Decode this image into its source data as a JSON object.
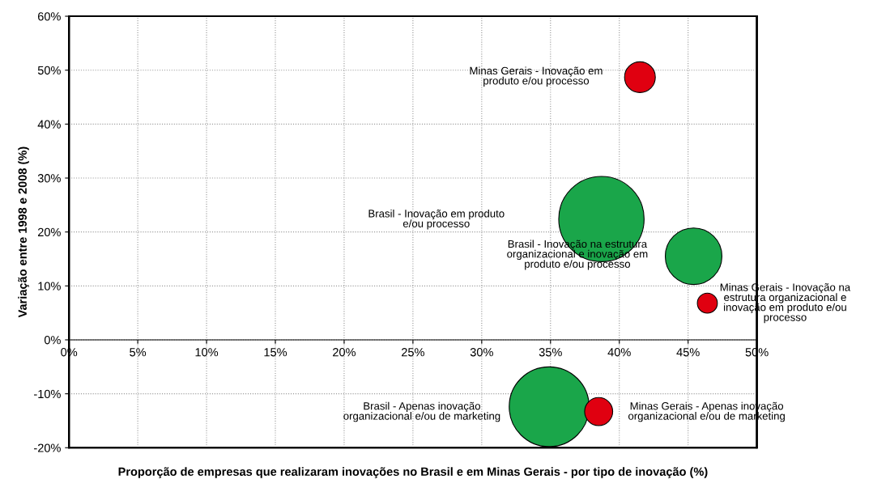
{
  "chart_data": {
    "type": "bubble",
    "xlabel": "Proporção de empresas que realizaram inovações no Brasil e em Minas Gerais - por tipo de inovação (%)",
    "ylabel": "Variação entre 1998 e 2008 (%)",
    "series": [
      {
        "color": "#1aa64a",
        "x": [
          38.7,
          45.4,
          34.9
        ],
        "values": [
          22.4,
          15.5,
          -12.4
        ],
        "sizes": [
          1,
          0.44,
          0.875
        ]
      },
      {
        "color": "#e00010",
        "x": [
          41.5,
          46.4,
          38.5
        ],
        "values": [
          48.7,
          6.8,
          -13.3
        ],
        "sizes": [
          0.13,
          0.055,
          0.108
        ]
      }
    ],
    "annotations": [
      "Minas Gerais - Inovação em\nproduto e/ou processo",
      "Brasil - Inovação em produto\ne/ou processo",
      "Brasil - Inovação na estrutura\norganizacional e inovação em\nproduto e/ou processo",
      "Minas Gerais - Inovação na\nestrutura organizacional e\ninovação em produto e/ou\nprocesso",
      "Brasil - Apenas inovação\norganizacional e/ou de marketing",
      "Minas Gerais - Apenas inovação\norganizacional e/ou de marketing"
    ],
    "xlim": [
      0,
      50
    ],
    "xticks": [
      {
        "value": 0,
        "label": "0%"
      },
      {
        "value": 5,
        "label": "5%"
      },
      {
        "value": 10,
        "label": "10%"
      },
      {
        "value": 15,
        "label": "15%"
      },
      {
        "value": 20,
        "label": "20%"
      },
      {
        "value": 25,
        "label": "25%"
      },
      {
        "value": 30,
        "label": "30%"
      },
      {
        "value": 35,
        "label": "35%"
      },
      {
        "value": 40,
        "label": "40%"
      },
      {
        "value": 45,
        "label": "45%"
      },
      {
        "value": 50,
        "label": "50%"
      }
    ],
    "ylim": [
      -20,
      60
    ],
    "yticks": [
      {
        "value": -20,
        "label": "-20%"
      },
      {
        "value": -10,
        "label": "-10%"
      },
      {
        "value": 0,
        "label": "0%"
      },
      {
        "value": 10,
        "label": "10%"
      },
      {
        "value": 20,
        "label": "20%"
      },
      {
        "value": 30,
        "label": "30%"
      },
      {
        "value": 40,
        "label": "40%"
      },
      {
        "value": 50,
        "label": "50%"
      },
      {
        "value": 60,
        "label": "60%"
      }
    ],
    "grid": true
  }
}
